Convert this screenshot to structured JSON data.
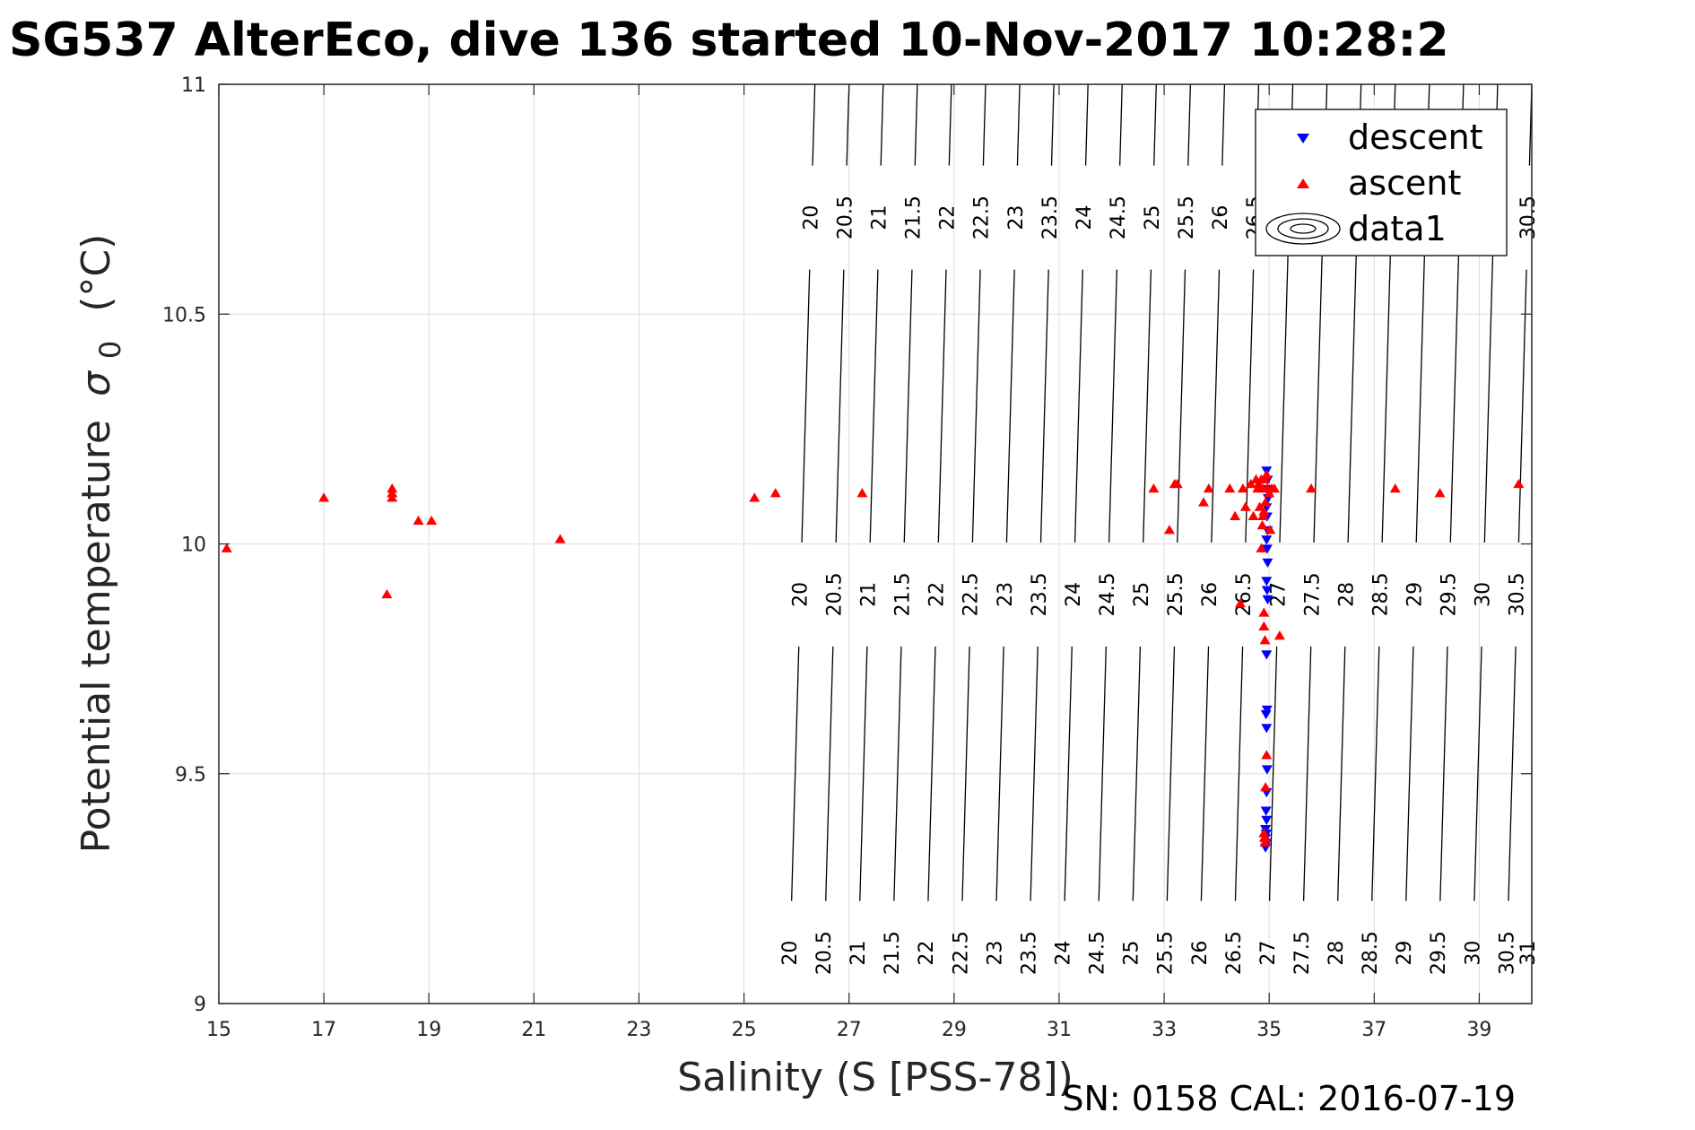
{
  "chart_data": {
    "type": "scatter",
    "title": "SG537 AlterEco, dive 136 started 10-Nov-2017 10:28:2",
    "xlabel": "Salinity (S [PSS-78])",
    "ylabel": "Potential temperature",
    "ylabel_symbol": "σ",
    "ylabel_subscript": "0",
    "ylabel_unit": "(°C)",
    "footer": "SN: 0158  CAL: 2016-07-19",
    "xlim": [
      15,
      40
    ],
    "ylim": [
      9,
      11
    ],
    "x_ticks": [
      15,
      17,
      19,
      21,
      23,
      25,
      27,
      29,
      31,
      33,
      35,
      37,
      39
    ],
    "y_ticks": [
      "9",
      "9.5",
      "10",
      "10.5",
      "11"
    ],
    "grid": true,
    "legend_position": "top-right",
    "legend": [
      {
        "label": "descent",
        "marker": "triangle-down",
        "color": "#0000ff"
      },
      {
        "label": "ascent",
        "marker": "triangle-up",
        "color": "#ff0000"
      },
      {
        "label": "data1",
        "marker": "contour"
      }
    ],
    "contours": {
      "color": "#000000",
      "levels": [
        20,
        20.5,
        21,
        21.5,
        22,
        22.5,
        23,
        23.5,
        24,
        24.5,
        25,
        25.5,
        26,
        26.5,
        27,
        27.5,
        28,
        28.5,
        29,
        29.5,
        30,
        30.5,
        31
      ],
      "salinity_at_bottom": [
        25.85,
        26.5,
        27.15,
        27.8,
        28.45,
        29.1,
        29.75,
        30.4,
        31.05,
        31.7,
        32.35,
        33.0,
        33.65,
        34.3,
        34.95,
        35.6,
        36.25,
        36.9,
        37.55,
        38.2,
        38.85,
        39.5,
        40.15
      ],
      "salinity_at_top": [
        26.35,
        27.0,
        27.65,
        28.3,
        28.95,
        29.6,
        30.25,
        30.9,
        31.55,
        32.2,
        32.85,
        33.5,
        34.15,
        34.8,
        35.45,
        36.1,
        36.75,
        37.4,
        38.05,
        38.7,
        39.35,
        40.0,
        40.65
      ],
      "label_rows": [
        {
          "temperature": 10.71,
          "levels": [
            "20",
            "20.5",
            "21",
            "21.5",
            "22",
            "22.5",
            "23",
            "23.5",
            "24",
            "24.5",
            "25",
            "25.5",
            "26",
            "26.5",
            "30.5"
          ]
        },
        {
          "temperature": 9.89,
          "levels": [
            "20",
            "20.5",
            "21",
            "21.5",
            "22",
            "22.5",
            "23",
            "23.5",
            "24",
            "24.5",
            "25",
            "25.5",
            "26",
            "26.5",
            "27",
            "27.5",
            "28",
            "28.5",
            "29",
            "29.5",
            "30",
            "30.5"
          ]
        },
        {
          "temperature": 9.11,
          "levels": [
            "20",
            "20.5",
            "21",
            "21.5",
            "22",
            "22.5",
            "23",
            "23.5",
            "24",
            "24.5",
            "25",
            "25.5",
            "26",
            "26.5",
            "27",
            "27.5",
            "28",
            "28.5",
            "29",
            "29.5",
            "30",
            "30.5",
            "31"
          ]
        }
      ]
    },
    "series": [
      {
        "name": "descent",
        "color": "#0000ff",
        "marker": "triangle-down",
        "x": [
          34.95,
          34.97,
          34.96,
          34.98,
          34.95,
          34.96,
          34.97,
          34.95,
          34.96,
          34.97,
          34.95,
          34.96,
          34.97,
          34.95,
          34.96,
          34.94,
          34.95,
          34.96,
          34.95,
          34.94,
          34.95,
          34.93,
          34.94,
          34.93,
          34.95,
          34.94,
          34.93,
          34.94
        ],
        "y": [
          10.16,
          10.14,
          10.12,
          10.1,
          10.08,
          10.06,
          10.03,
          10.01,
          9.99,
          9.96,
          9.92,
          9.9,
          9.88,
          9.76,
          9.64,
          9.63,
          9.6,
          9.51,
          9.46,
          9.42,
          9.4,
          9.38,
          9.37,
          9.36,
          9.35,
          9.35,
          9.34,
          9.37
        ]
      },
      {
        "name": "ascent",
        "color": "#ff0000",
        "marker": "triangle-up",
        "x": [
          15.15,
          17.0,
          18.3,
          18.3,
          18.3,
          18.2,
          18.8,
          19.05,
          21.5,
          25.2,
          25.6,
          27.25,
          32.8,
          33.1,
          33.2,
          33.25,
          33.75,
          33.85,
          34.25,
          34.35,
          34.45,
          34.5,
          34.55,
          34.65,
          34.7,
          34.75,
          34.78,
          34.8,
          34.82,
          34.85,
          34.85,
          34.87,
          34.88,
          34.9,
          34.92,
          34.93,
          34.95,
          34.96,
          35.0,
          35.02,
          35.05,
          35.1,
          35.2,
          35.8,
          37.4,
          38.25,
          39.75,
          34.88,
          34.9,
          34.9,
          34.92,
          34.95,
          34.93,
          34.9,
          34.91,
          34.92,
          34.93
        ],
        "y": [
          9.99,
          10.1,
          10.12,
          10.11,
          10.1,
          9.89,
          10.05,
          10.05,
          10.01,
          10.1,
          10.11,
          10.11,
          10.12,
          10.03,
          10.13,
          10.13,
          10.09,
          10.12,
          10.12,
          10.06,
          9.87,
          10.12,
          10.08,
          10.13,
          10.06,
          10.14,
          10.12,
          10.13,
          10.08,
          10.14,
          9.99,
          10.04,
          10.12,
          10.07,
          10.14,
          10.09,
          10.15,
          10.12,
          10.11,
          10.03,
          10.12,
          10.12,
          9.8,
          10.12,
          10.12,
          10.11,
          10.13,
          10.06,
          9.85,
          9.82,
          9.79,
          9.54,
          9.47,
          9.37,
          9.36,
          9.35,
          9.36
        ]
      }
    ]
  }
}
